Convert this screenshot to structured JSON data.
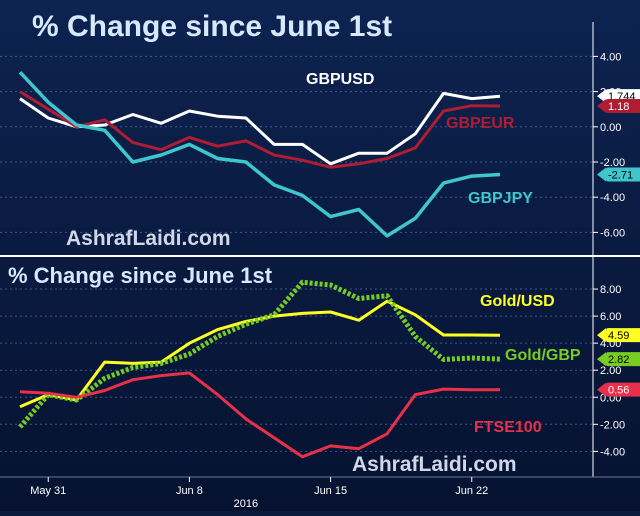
{
  "colors": {
    "background_top": "#0d2350",
    "background_bottom": "#061230",
    "divider": "#ffffff",
    "grid": "#3a5a8a",
    "gbpusd": "#ffffff",
    "gbpeur": "#b01c32",
    "gbpjpy": "#3ec6cc",
    "gold_usd": "#ffff22",
    "gold_gbp": "#77cc22",
    "ftse100": "#e8304a",
    "title": "#d8e8ff",
    "watermark": "#d0d8e8",
    "tick": "#ffffff"
  },
  "chart_data": [
    {
      "type": "line",
      "title": "% Change since June 1st",
      "watermark": "AshrafLaidi.com",
      "ylim": [
        -7,
        5.5
      ],
      "yticks": [
        "4.00",
        "2.00",
        "0.00",
        "-2.00",
        "-4.00",
        "-6.00"
      ],
      "ytick_values": [
        4,
        2,
        0,
        -2,
        -4,
        -6
      ],
      "grid": true,
      "x": [
        0,
        1,
        2,
        3,
        4,
        5,
        6,
        7,
        8,
        9,
        10,
        11,
        12,
        13,
        14,
        15,
        16,
        17
      ],
      "series": [
        {
          "name": "GBPUSD",
          "color_key": "gbpusd",
          "values": [
            1.6,
            0.5,
            0.0,
            0.1,
            0.7,
            0.2,
            0.9,
            0.6,
            0.5,
            -1.0,
            -1.0,
            -2.1,
            -1.5,
            -1.5,
            -0.4,
            1.9,
            1.6,
            1.74
          ]
        },
        {
          "name": "GBPEUR",
          "color_key": "gbpeur",
          "values": [
            2.0,
            1.0,
            0.0,
            0.4,
            -0.9,
            -1.3,
            -0.6,
            -1.1,
            -0.8,
            -1.6,
            -1.9,
            -2.3,
            -2.1,
            -1.8,
            -1.2,
            0.9,
            1.2,
            1.18
          ]
        },
        {
          "name": "GBPJPY",
          "color_key": "gbpjpy",
          "values": [
            3.1,
            1.4,
            0.1,
            -0.2,
            -2.0,
            -1.6,
            -1.0,
            -1.8,
            -2.0,
            -3.3,
            -3.9,
            -5.1,
            -4.7,
            -6.2,
            -5.2,
            -3.2,
            -2.8,
            -2.71
          ]
        }
      ],
      "last_value_labels": [
        "1.744",
        "1.18",
        "-2.71"
      ],
      "series_labels": [
        "GBPUSD",
        "GBPEUR",
        "GBPJPY"
      ]
    },
    {
      "type": "line",
      "title": "% Change since June 1st",
      "watermark": "AshrafLaidi.com",
      "ylim": [
        -5.6,
        10
      ],
      "yticks": [
        "8.00",
        "6.00",
        "4.00",
        "2.00",
        "0.00",
        "-2.00",
        "-4.00"
      ],
      "ytick_values": [
        8,
        6,
        4,
        2,
        0,
        -2,
        -4
      ],
      "grid": true,
      "x": [
        0,
        1,
        2,
        3,
        4,
        5,
        6,
        7,
        8,
        9,
        10,
        11,
        12,
        13,
        14,
        15,
        16,
        17
      ],
      "xticks": [
        "May 31",
        "Jun 8",
        "Jun 15",
        "Jun 22"
      ],
      "xtick_positions": [
        1,
        6,
        11,
        16
      ],
      "xlabel": "2016",
      "series": [
        {
          "name": "Gold/USD",
          "color_key": "gold_usd",
          "values": [
            -0.7,
            0.2,
            -0.2,
            2.6,
            2.5,
            2.6,
            4.0,
            5.0,
            5.6,
            6.0,
            6.2,
            6.3,
            5.7,
            7.1,
            6.1,
            4.6,
            4.6,
            4.59
          ]
        },
        {
          "name": "Gold/GBP",
          "color_key": "gold_gbp",
          "values": [
            -2.2,
            0.2,
            -0.2,
            1.4,
            2.2,
            2.5,
            3.2,
            4.5,
            5.4,
            6.1,
            8.5,
            8.3,
            7.3,
            7.5,
            4.5,
            2.8,
            2.9,
            2.82
          ]
        },
        {
          "name": "FTSE100",
          "color_key": "ftse100",
          "values": [
            0.4,
            0.3,
            0.0,
            0.5,
            1.3,
            1.6,
            1.8,
            0.2,
            -1.6,
            -3.0,
            -4.4,
            -3.6,
            -3.8,
            -2.7,
            0.2,
            0.6,
            0.56,
            0.56
          ]
        }
      ],
      "last_value_labels": [
        "4.59",
        "2.82",
        "0.56"
      ],
      "series_labels": [
        "Gold/USD",
        "Gold/GBP",
        "FTSE100"
      ]
    }
  ]
}
